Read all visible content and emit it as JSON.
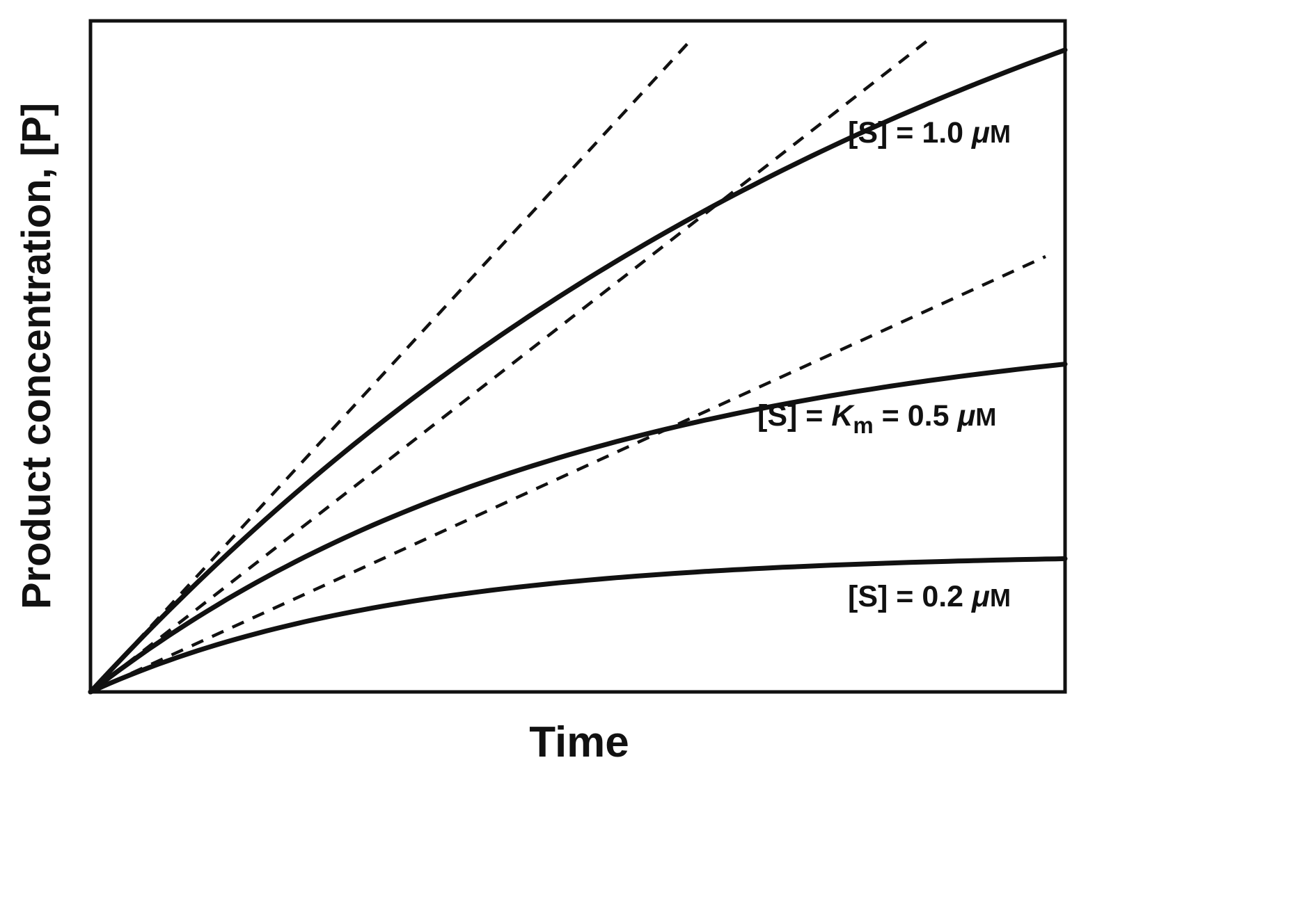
{
  "figure": {
    "x_axis_label": "Time",
    "y_axis_label": "Product concentration, [P]"
  },
  "plot": {
    "colors": {
      "line": "#111111",
      "background": "#ffffff"
    },
    "labels": {
      "curve1": {
        "pre": "[S] = 1.0 ",
        "mu": "μ",
        "unit": "M"
      },
      "curve2": {
        "pre": "[S] = ",
        "k_symbol": "K",
        "k_sub": "m",
        "mid": " = 0.5 ",
        "mu": "μ",
        "unit": "M"
      },
      "curve3": {
        "pre": "[S] = 0.2 ",
        "mu": "μ",
        "unit": "M"
      }
    }
  },
  "chart_data": {
    "type": "line",
    "title": "Enzyme reaction progress curves at different substrate concentrations with initial-velocity tangents",
    "xlabel": "Time",
    "ylabel": "Product concentration, [P]",
    "x_range_norm": [
      0,
      1
    ],
    "y_range_norm": [
      0,
      1
    ],
    "grid": false,
    "axes_ticks": "none (schematic, unlabeled axes)",
    "legend_position": "inline-right",
    "series": [
      {
        "name": "[S] = 1.0 μM",
        "substrate_conc_uM": 1.0,
        "style": "solid",
        "model": "P(t) = Pmax·(1 − e^(−k·t))",
        "pmax_norm": 1.434,
        "rate_k": 1.1,
        "initial_velocity_norm": 1.577,
        "x": [
          0,
          0.1,
          0.2,
          0.3,
          0.4,
          0.5,
          0.6,
          0.7,
          0.8,
          0.9,
          1.0
        ],
        "y": [
          0,
          0.149,
          0.283,
          0.403,
          0.51,
          0.607,
          0.692,
          0.77,
          0.839,
          0.901,
          0.957
        ]
      },
      {
        "name": "[S] = Km = 0.5 μM",
        "substrate_conc_uM": 0.5,
        "style": "solid",
        "model": "P(t) = Pmax·(1 − e^(−k·t))",
        "pmax_norm": 0.565,
        "rate_k": 2.0,
        "initial_velocity_norm": 1.13,
        "x": [
          0,
          0.1,
          0.2,
          0.3,
          0.4,
          0.5,
          0.6,
          0.7,
          0.8,
          0.9,
          1.0
        ],
        "y": [
          0,
          0.102,
          0.186,
          0.255,
          0.311,
          0.357,
          0.395,
          0.426,
          0.451,
          0.472,
          0.489
        ]
      },
      {
        "name": "[S] = 0.2 μM",
        "substrate_conc_uM": 0.2,
        "style": "solid",
        "model": "P(t) = Pmax·(1 − e^(−k·t))",
        "pmax_norm": 0.207,
        "rate_k": 3.2,
        "initial_velocity_norm": 0.662,
        "x": [
          0,
          0.1,
          0.2,
          0.3,
          0.4,
          0.5,
          0.6,
          0.7,
          0.8,
          0.9,
          1.0
        ],
        "y": [
          0,
          0.057,
          0.098,
          0.128,
          0.149,
          0.165,
          0.177,
          0.185,
          0.191,
          0.195,
          0.199
        ]
      }
    ],
    "tangents": [
      {
        "for_series": "[S] = 1.0 μM",
        "style": "dashed",
        "slope_norm": 1.577,
        "from": [
          0,
          0
        ],
        "to_t": 0.618
      },
      {
        "for_series": "[S] = Km = 0.5 μM",
        "style": "dashed",
        "slope_norm": 1.13,
        "from": [
          0,
          0
        ],
        "to_t": 0.862
      },
      {
        "for_series": "[S] = 0.2 μM",
        "style": "dashed",
        "slope_norm": 0.662,
        "from": [
          0,
          0
        ],
        "to_t": 0.98
      }
    ]
  }
}
